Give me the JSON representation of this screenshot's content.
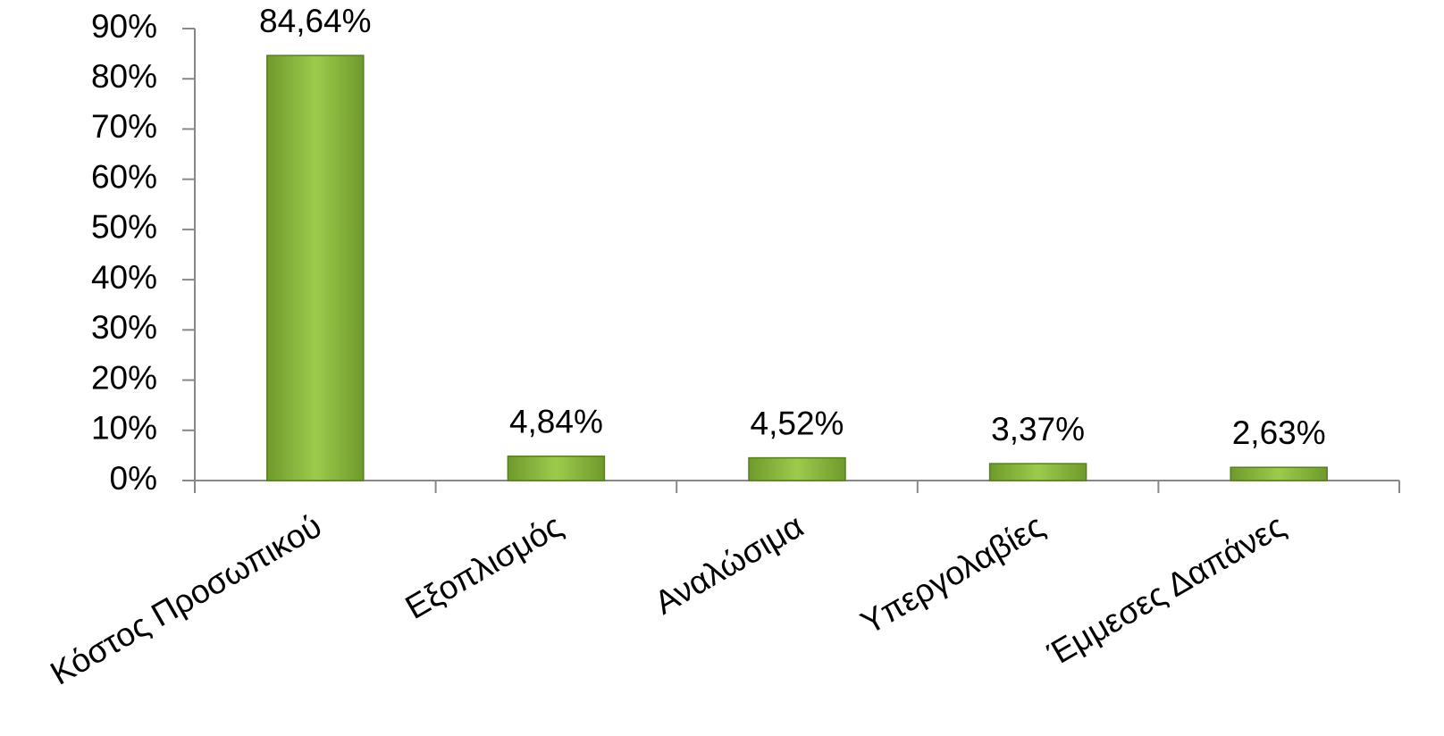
{
  "chart_data": {
    "type": "bar",
    "categories": [
      "Κόστος Προσωπικού",
      "Εξοπλισμός",
      "Αναλώσιμα",
      "Υπεργολαβίες",
      "Έμμεσες Δαπάνες"
    ],
    "values": [
      84.64,
      4.84,
      4.52,
      3.37,
      2.63
    ],
    "value_labels": [
      "84,64%",
      "4,84%",
      "4,52%",
      "3,37%",
      "2,63%"
    ],
    "color": "#9ccb4c",
    "ylim": [
      0,
      90
    ],
    "yticks": [
      {
        "value": 0,
        "label": "0%"
      },
      {
        "value": 10,
        "label": "10%"
      },
      {
        "value": 20,
        "label": "20%"
      },
      {
        "value": 30,
        "label": "30%"
      },
      {
        "value": 40,
        "label": "40%"
      },
      {
        "value": 50,
        "label": "50%"
      },
      {
        "value": 60,
        "label": "60%"
      },
      {
        "value": 70,
        "label": "70%"
      },
      {
        "value": 80,
        "label": "80%"
      },
      {
        "value": 90,
        "label": "90%"
      }
    ],
    "grid": false
  }
}
